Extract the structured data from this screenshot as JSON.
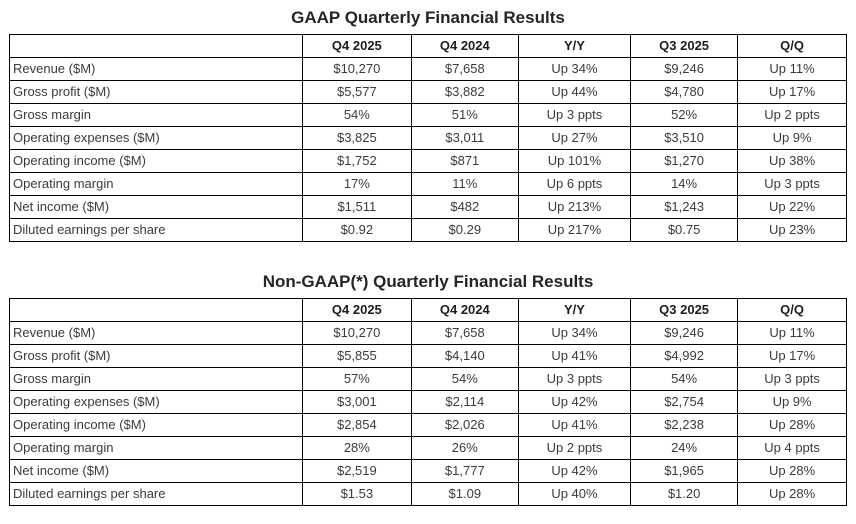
{
  "tables": [
    {
      "title": "GAAP Quarterly Financial Results",
      "columns": [
        "",
        "Q4 2025",
        "Q4 2024",
        "Y/Y",
        "Q3 2025",
        "Q/Q"
      ],
      "rows": [
        {
          "label": "Revenue ($M)",
          "values": [
            "$10,270",
            "$7,658",
            "Up 34%",
            "$9,246",
            "Up 11%"
          ]
        },
        {
          "label": "Gross profit ($M)",
          "values": [
            "$5,577",
            "$3,882",
            "Up 44%",
            "$4,780",
            "Up 17%"
          ]
        },
        {
          "label": "Gross margin",
          "values": [
            "54%",
            "51%",
            "Up 3 ppts",
            "52%",
            "Up 2 ppts"
          ]
        },
        {
          "label": "Operating expenses ($M)",
          "values": [
            "$3,825",
            "$3,011",
            "Up 27%",
            "$3,510",
            "Up 9%"
          ]
        },
        {
          "label": "Operating income ($M)",
          "values": [
            "$1,752",
            "$871",
            "Up 101%",
            "$1,270",
            "Up 38%"
          ]
        },
        {
          "label": "Operating margin",
          "values": [
            "17%",
            "11%",
            "Up 6 ppts",
            "14%",
            "Up 3 ppts"
          ]
        },
        {
          "label": "Net income ($M)",
          "values": [
            "$1,511",
            "$482",
            "Up 213%",
            "$1,243",
            "Up 22%"
          ]
        },
        {
          "label": "Diluted earnings per share",
          "values": [
            "$0.92",
            "$0.29",
            "Up 217%",
            "$0.75",
            "Up 23%"
          ]
        }
      ]
    },
    {
      "title": "Non-GAAP(*) Quarterly Financial Results",
      "columns": [
        "",
        "Q4 2025",
        "Q4 2024",
        "Y/Y",
        "Q3 2025",
        "Q/Q"
      ],
      "rows": [
        {
          "label": "Revenue ($M)",
          "values": [
            "$10,270",
            "$7,658",
            "Up 34%",
            "$9,246",
            "Up 11%"
          ]
        },
        {
          "label": "Gross profit ($M)",
          "values": [
            "$5,855",
            "$4,140",
            "Up 41%",
            "$4,992",
            "Up 17%"
          ]
        },
        {
          "label": "Gross margin",
          "values": [
            "57%",
            "54%",
            "Up 3 ppts",
            "54%",
            "Up 3 ppts"
          ]
        },
        {
          "label": "Operating expenses ($M)",
          "values": [
            "$3,001",
            "$2,114",
            "Up 42%",
            "$2,754",
            "Up 9%"
          ]
        },
        {
          "label": "Operating income ($M)",
          "values": [
            "$2,854",
            "$2,026",
            "Up 41%",
            "$2,238",
            "Up 28%"
          ]
        },
        {
          "label": "Operating margin",
          "values": [
            "28%",
            "26%",
            "Up 2 ppts",
            "24%",
            "Up 4 ppts"
          ]
        },
        {
          "label": "Net income ($M)",
          "values": [
            "$2,519",
            "$1,777",
            "Up 42%",
            "$1,965",
            "Up 28%"
          ]
        },
        {
          "label": "Diluted earnings per share",
          "values": [
            "$1.53",
            "$1.09",
            "Up 40%",
            "$1.20",
            "Up 28%"
          ]
        }
      ]
    }
  ]
}
